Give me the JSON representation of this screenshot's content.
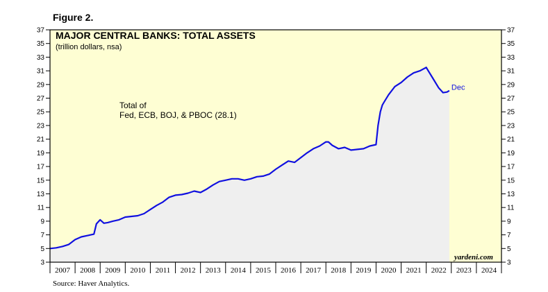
{
  "figure_label": "Figure 2.",
  "source": "Source: Haver Analytics.",
  "colors": {
    "background": "#fefed3",
    "area_fill": "#efefef",
    "line": "#1010e0",
    "frame": "#000000"
  },
  "chart_data": {
    "type": "area",
    "title": "MAJOR CENTRAL BANKS: TOTAL ASSETS",
    "subtitle": "(trillion dollars, nsa)",
    "annotation": [
      "Total of",
      "Fed, ECB, BOJ, & PBOC (28.1)"
    ],
    "end_label": "Dec",
    "brand": "yardeni.com",
    "xlim": [
      2007,
      2025
    ],
    "ylim": [
      3,
      37
    ],
    "y_ticks": [
      3,
      5,
      7,
      9,
      11,
      13,
      15,
      17,
      19,
      21,
      23,
      25,
      27,
      29,
      31,
      33,
      35,
      37
    ],
    "year_labels": [
      "2007",
      "2008",
      "2009",
      "2010",
      "2011",
      "2012",
      "2013",
      "2014",
      "2015",
      "2016",
      "2017",
      "2018",
      "2019",
      "2020",
      "2021",
      "2022",
      "2023",
      "2024"
    ],
    "grid": false,
    "series": [
      {
        "x": [
          2007.0,
          2007.25,
          2007.5,
          2007.75,
          2008.0,
          2008.25,
          2008.5,
          2008.75,
          2008.85,
          2009.0,
          2009.15,
          2009.3,
          2009.5,
          2009.75,
          2010.0,
          2010.25,
          2010.5,
          2010.75,
          2011.0,
          2011.25,
          2011.5,
          2011.75,
          2012.0,
          2012.25,
          2012.5,
          2012.75,
          2013.0,
          2013.25,
          2013.5,
          2013.75,
          2014.0,
          2014.25,
          2014.5,
          2014.75,
          2015.0,
          2015.25,
          2015.5,
          2015.75,
          2016.0,
          2016.25,
          2016.5,
          2016.75,
          2017.0,
          2017.25,
          2017.5,
          2017.75,
          2018.0,
          2018.1,
          2018.25,
          2018.5,
          2018.75,
          2019.0,
          2019.25,
          2019.5,
          2019.75,
          2020.0,
          2020.08,
          2020.17,
          2020.25,
          2020.33,
          2020.5,
          2020.75,
          2021.0,
          2021.25,
          2021.5,
          2021.75,
          2022.0,
          2022.08,
          2022.25,
          2022.5,
          2022.67,
          2022.83,
          2022.92
        ],
        "y": [
          5.0,
          5.1,
          5.3,
          5.6,
          6.3,
          6.7,
          6.9,
          7.1,
          8.6,
          9.2,
          8.7,
          8.8,
          9.0,
          9.2,
          9.6,
          9.7,
          9.8,
          10.1,
          10.7,
          11.3,
          11.8,
          12.5,
          12.8,
          12.9,
          13.1,
          13.4,
          13.2,
          13.7,
          14.3,
          14.8,
          15.0,
          15.2,
          15.2,
          15.0,
          15.2,
          15.5,
          15.6,
          15.9,
          16.6,
          17.2,
          17.8,
          17.6,
          18.3,
          19.0,
          19.6,
          20.0,
          20.6,
          20.6,
          20.1,
          19.6,
          19.8,
          19.4,
          19.5,
          19.6,
          20.0,
          20.2,
          23.0,
          25.0,
          26.0,
          26.5,
          27.5,
          28.7,
          29.3,
          30.1,
          30.7,
          31.0,
          31.5,
          31.0,
          30.0,
          28.5,
          27.8,
          27.9,
          28.1
        ]
      }
    ]
  }
}
